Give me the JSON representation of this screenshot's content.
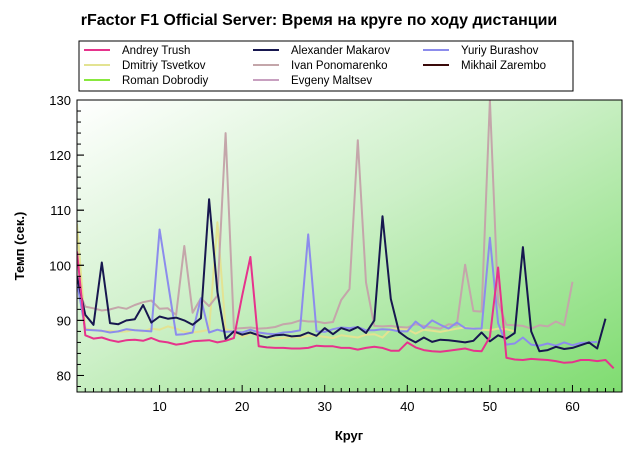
{
  "chart_data": {
    "type": "line",
    "title": "rFactor F1 Official Server: Время на круге по ходу дистанции",
    "xlabel": "Круг",
    "ylabel": "Темп (сек.)",
    "xlim": [
      0,
      66
    ],
    "ylim": [
      77,
      130
    ],
    "xticks": [
      10,
      20,
      30,
      40,
      50,
      60
    ],
    "yticks": [
      80,
      90,
      100,
      110,
      120,
      130
    ],
    "x_minor_step": 1,
    "y_minor_step": 2,
    "legend_position": "top",
    "series": [
      {
        "name": "Andrey Trush",
        "color": "#e6338c",
        "x_start": 0,
        "values": [
          102.5,
          87.3,
          86.7,
          86.9,
          86.4,
          86.1,
          86.4,
          86.5,
          86.3,
          86.8,
          86.2,
          86.0,
          85.6,
          85.8,
          86.2,
          86.3,
          86.4,
          86.0,
          86.3,
          86.8,
          94.5,
          101.5,
          85.3,
          85.1,
          85.0,
          85.0,
          84.9,
          84.9,
          85.0,
          85.4,
          85.3,
          85.3,
          85.0,
          85.0,
          84.7,
          85.0,
          85.2,
          85.0,
          84.5,
          84.5,
          86.0,
          85.1,
          84.6,
          84.4,
          84.3,
          84.5,
          84.7,
          84.9,
          84.5,
          84.4,
          87.0,
          99.6,
          83.2,
          82.9,
          82.8,
          83.0,
          82.9,
          82.8,
          82.6,
          82.3,
          82.4,
          82.8,
          82.8,
          82.6,
          82.8,
          81.3
        ]
      },
      {
        "name": "Dmitriy Tsvetkov",
        "color": "#e3e392",
        "x_start": 0,
        "values": [
          107.5,
          88.5,
          88.3,
          88.0,
          88.1,
          87.9,
          88.0,
          88.3,
          88.0,
          88.5,
          88.3,
          88.9,
          88.5,
          87.9,
          87.8,
          88.0,
          88.3,
          107.8,
          88.4,
          88.0,
          87.0,
          87.6,
          87.3,
          86.9,
          86.7,
          86.8,
          87.0,
          86.9,
          87.2,
          87.2,
          87.0,
          86.8,
          87.3,
          87.1,
          86.9,
          87.4,
          87.5,
          86.9,
          88.4,
          88.5,
          88.4,
          87.6,
          88.3,
          88.1,
          87.9,
          88.2,
          88.5,
          88.7,
          88.6,
          88.3,
          88.2,
          88.5,
          88.4,
          88.0
        ]
      },
      {
        "name": "Roman Dobrodiy",
        "color": "#88e83e",
        "x_start": 0,
        "values": []
      },
      {
        "name": "Alexander Makarov",
        "color": "#17174f",
        "x_start": 0,
        "values": [
          98.0,
          91.0,
          89.2,
          100.5,
          89.5,
          89.3,
          90.0,
          90.2,
          92.8,
          89.6,
          90.7,
          90.3,
          90.5,
          90.0,
          89.2,
          90.4,
          112.0,
          95.2,
          86.6,
          88.0,
          87.4,
          87.8,
          87.3,
          86.9,
          87.3,
          87.4,
          87.1,
          87.2,
          87.8,
          87.2,
          88.6,
          87.5,
          88.6,
          88.1,
          88.8,
          87.7,
          90.0,
          108.9,
          93.9,
          87.9,
          86.8,
          86.0,
          86.9,
          86.1,
          86.5,
          86.4,
          86.2,
          86.0,
          86.3,
          87.8,
          86.2,
          87.3,
          86.7,
          87.7,
          103.3,
          88.0,
          84.4,
          84.6,
          85.2,
          84.8,
          85.0,
          85.5,
          86.0,
          84.9,
          90.3
        ]
      },
      {
        "name": "Ivan Ponomarenko",
        "color": "#c4a6aa",
        "x_start": 0,
        "values": [
          96.0,
          92.5,
          92.2,
          91.8,
          92.0,
          92.4,
          92.1,
          92.8,
          93.3,
          93.6,
          92.1,
          92.2,
          91.0,
          103.5,
          91.4,
          94.0,
          92.6,
          94.5,
          124.0,
          88.5,
          88.6,
          88.7,
          88.5,
          88.6,
          88.8,
          89.3,
          89.5,
          90.0,
          89.8,
          89.8,
          89.5,
          89.7,
          93.7,
          95.7,
          122.7,
          96.9,
          89.0,
          88.9,
          89.0,
          88.8,
          88.7,
          89.3,
          89.0,
          88.7,
          88.5,
          89.3,
          89.1,
          100.1,
          91.7,
          91.6,
          130.0,
          93.3,
          89.2,
          89.1,
          89.0,
          88.5,
          89.1,
          88.9,
          89.8,
          89.1,
          97.0
        ]
      },
      {
        "name": "Evgeny Maltsev",
        "color": "#c8a0c0",
        "x_start": 0,
        "values": []
      },
      {
        "name": "Yuriy Burashov",
        "color": "#8c8cec",
        "x_start": 0,
        "values": [
          97.0,
          88.3,
          88.2,
          88.1,
          87.8,
          88.0,
          88.4,
          88.2,
          88.1,
          88.0,
          106.5,
          97.0,
          87.4,
          87.5,
          87.8,
          94.0,
          87.8,
          88.3,
          87.9,
          88.0,
          87.8,
          88.3,
          87.8,
          87.6,
          87.5,
          87.8,
          87.9,
          88.2,
          105.6,
          88.0,
          87.9,
          88.4,
          88.7,
          88.6,
          88.8,
          88.2,
          88.2,
          88.4,
          88.3,
          88.0,
          88.0,
          89.8,
          88.6,
          90.0,
          89.2,
          88.5,
          89.6,
          88.6,
          88.5,
          88.5,
          105.0,
          89.5,
          85.6,
          85.8,
          86.9,
          85.6,
          85.4,
          85.8,
          85.4,
          86.0,
          85.5,
          85.9,
          86.0,
          86.1
        ]
      },
      {
        "name": "Mikhail Zarembo",
        "color": "#3a0a0a",
        "x_start": 0,
        "values": []
      }
    ]
  }
}
